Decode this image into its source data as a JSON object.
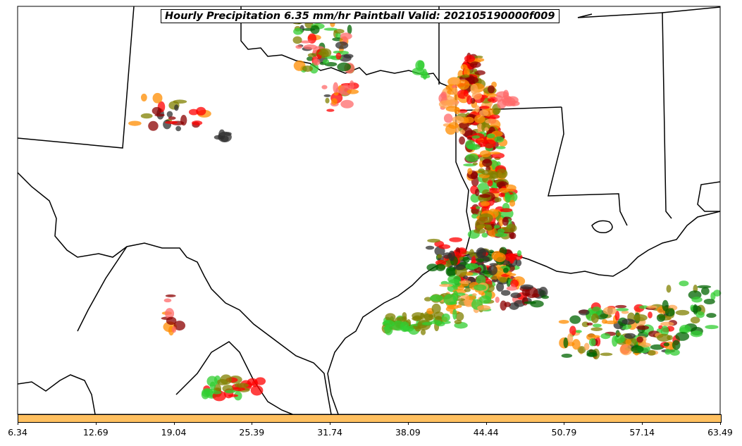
{
  "title": "Hourly Precipitation 6.35 mm/hr Paintball Valid: 202105190000f009",
  "colorbar": {
    "ticks": [
      "6.34",
      "12.69",
      "19.04",
      "25.39",
      "31.74",
      "38.09",
      "44.44",
      "50.79",
      "57.14",
      "63.49"
    ],
    "color": "#ffc060"
  },
  "member_colors": [
    "#ff8c00",
    "#ff0000",
    "#8b0000",
    "#808000",
    "#32cd32",
    "#006400",
    "#2f2f2f",
    "#ffa54f",
    "#ff6a6a",
    "#a0522d"
  ]
}
